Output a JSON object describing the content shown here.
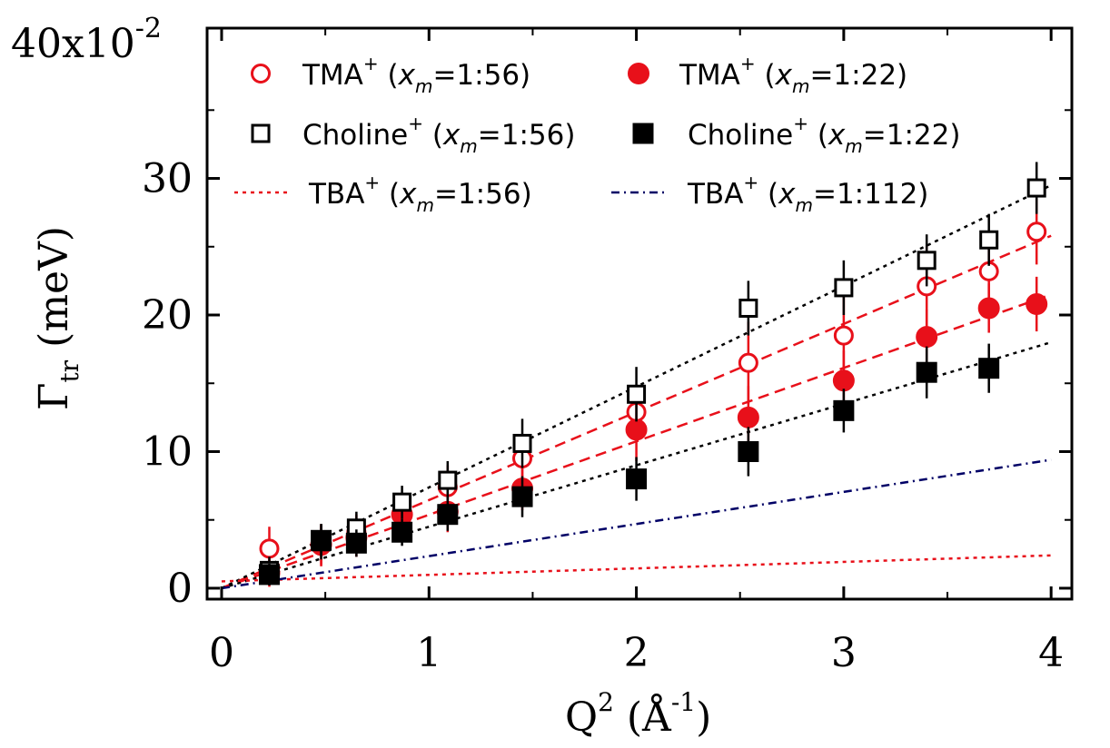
{
  "chart_data": {
    "type": "scatter",
    "x_label": {
      "main": "Q",
      "sup": "2",
      "paren_open": " (Å",
      "unit_sup": "-1",
      "paren_close": ")"
    },
    "y_label": {
      "main": "Γ",
      "sub": "tr",
      "unit": " (meV)"
    },
    "y_scale_label": {
      "base": "40x10",
      "exp": "-2"
    },
    "xlim": [
      -0.07,
      4.1
    ],
    "ylim": [
      -0.8,
      41
    ],
    "x_ticks": [
      0,
      1,
      2,
      3,
      4
    ],
    "x_tick_labels": [
      "0",
      "1",
      "2",
      "3",
      "4"
    ],
    "y_ticks": [
      0,
      10,
      20,
      30
    ],
    "y_tick_labels": [
      "0",
      "10",
      "20",
      "30"
    ],
    "grid": false,
    "legend_position": "top",
    "series": [
      {
        "name": "TMA+ (xm=1:56)",
        "marker": "circle-open",
        "color": "#e8101a",
        "x": [
          0.23,
          0.48,
          0.65,
          0.87,
          1.09,
          1.45,
          2.0,
          2.54,
          3.0,
          3.4,
          3.7,
          3.93
        ],
        "y": [
          2.9,
          3.1,
          4.1,
          5.5,
          7.4,
          9.5,
          12.9,
          16.5,
          18.5,
          22.1,
          23.2,
          26.1
        ],
        "err": [
          1.6,
          1.5,
          1.3,
          1.3,
          1.6,
          1.6,
          2.0,
          3.0,
          3.1,
          3.0,
          2.5,
          2.4
        ]
      },
      {
        "name": "TMA+ (xm=1:22)",
        "marker": "circle-filled",
        "color": "#e8101a",
        "x": [
          0.23,
          0.48,
          0.65,
          0.87,
          1.09,
          1.45,
          2.0,
          2.54,
          3.0,
          3.4,
          3.7,
          3.93
        ],
        "y": [
          1.1,
          3.2,
          3.7,
          5.4,
          5.6,
          7.3,
          11.6,
          12.5,
          15.2,
          18.4,
          20.5,
          20.8
        ],
        "err": [
          1.0,
          1.5,
          1.4,
          1.2,
          1.5,
          1.6,
          2.3,
          2.3,
          2.2,
          2.0,
          1.8,
          2.0
        ]
      },
      {
        "name": "Choline+ (xm=1:56)",
        "marker": "square-open",
        "color": "#000000",
        "x": [
          0.23,
          0.48,
          0.65,
          0.87,
          1.09,
          1.45,
          2.0,
          2.54,
          3.0,
          3.4,
          3.7,
          3.93
        ],
        "y": [
          1.3,
          3.4,
          4.4,
          6.3,
          7.9,
          10.6,
          14.2,
          20.5,
          22.0,
          24.0,
          25.5,
          29.3
        ],
        "err": [
          1.0,
          1.3,
          1.2,
          1.2,
          1.4,
          1.8,
          2.0,
          2.0,
          2.0,
          1.9,
          1.9,
          1.9
        ]
      },
      {
        "name": "Choline+ (xm=1:22)",
        "marker": "square-filled",
        "color": "#000000",
        "x": [
          0.23,
          0.48,
          0.65,
          0.87,
          1.09,
          1.45,
          2.0,
          2.54,
          3.0,
          3.4,
          3.7,
          3.93
        ],
        "y": [
          1.0,
          3.5,
          3.3,
          4.1,
          5.4,
          6.7,
          8.0,
          10.0,
          13.0,
          15.8,
          16.1,
          null
        ],
        "err": [
          0.8,
          1.2,
          1.0,
          1.0,
          1.2,
          1.5,
          1.6,
          1.8,
          1.6,
          1.9,
          1.8,
          null
        ]
      }
    ],
    "fit_lines": [
      {
        "name": "TMA+ (xm=1:56) fit",
        "style": "dashed",
        "color": "#e8101a",
        "x": [
          0,
          4
        ],
        "y": [
          0,
          25.8
        ]
      },
      {
        "name": "TMA+ (xm=1:22) fit",
        "style": "dashed",
        "color": "#e8101a",
        "x": [
          0,
          4
        ],
        "y": [
          0,
          21.5
        ]
      },
      {
        "name": "Choline+ (xm=1:56) fit",
        "style": "dotted",
        "color": "#000000",
        "x": [
          0,
          4
        ],
        "y": [
          0,
          29.5
        ]
      },
      {
        "name": "Choline+ (xm=1:22) fit",
        "style": "dotted",
        "color": "#000000",
        "x": [
          0,
          4
        ],
        "y": [
          0,
          18.0
        ]
      },
      {
        "name": "TBA+ (xm=1:56)",
        "style": "dotted",
        "color": "#e8101a",
        "x": [
          0,
          4
        ],
        "y": [
          0.5,
          2.4
        ]
      },
      {
        "name": "TBA+ (xm=1:112)",
        "style": "dashdot",
        "color": "#000066",
        "x": [
          0,
          4
        ],
        "y": [
          0,
          9.4
        ]
      }
    ],
    "legend": [
      {
        "marker": "circle-open",
        "color": "#e8101a",
        "name": "TMA",
        "charge": "+",
        "open": " (",
        "var": "x",
        "var_sub": "m",
        "ratio": "=1:56)"
      },
      {
        "marker": "circle-filled",
        "color": "#e8101a",
        "name": "TMA",
        "charge": "+",
        "open": " (",
        "var": "x",
        "var_sub": "m",
        "ratio": "=1:22)"
      },
      {
        "marker": "square-open",
        "color": "#000000",
        "name": "Choline",
        "charge": "+",
        "open": " (",
        "var": "x",
        "var_sub": "m",
        "ratio": "=1:56)"
      },
      {
        "marker": "square-filled",
        "color": "#000000",
        "name": "Choline",
        "charge": "+",
        "open": " (",
        "var": "x",
        "var_sub": "m",
        "ratio": "=1:22)"
      },
      {
        "marker": "line-dotted",
        "color": "#e8101a",
        "name": "TBA",
        "charge": "+",
        "open": " (",
        "var": "x",
        "var_sub": "m",
        "ratio": "=1:56)"
      },
      {
        "marker": "line-dashdot",
        "color": "#000066",
        "name": "TBA",
        "charge": "+",
        "open": " (",
        "var": "x",
        "var_sub": "m",
        "ratio": "=1:112)"
      }
    ]
  }
}
